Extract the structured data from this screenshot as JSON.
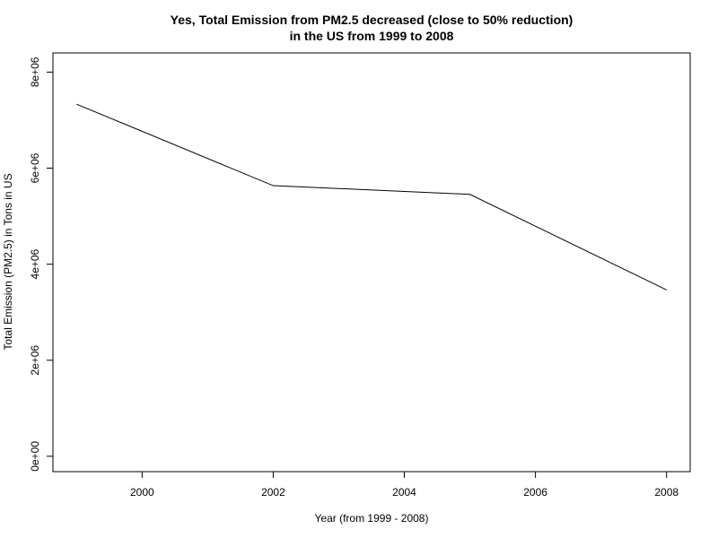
{
  "chart_data": {
    "type": "line",
    "title_lines": [
      "Yes, Total Emission from PM2.5 decreased (close to 50% reduction)",
      "in the US  from 1999 to 2008"
    ],
    "xlabel": "Year (from 1999 - 2008)",
    "ylabel": "Total Emission (PM2.5) in Tons in US",
    "x": [
      1999,
      2002,
      2005,
      2008
    ],
    "series": [
      {
        "values": [
          7332967,
          5635780,
          5454703,
          3464206
        ]
      }
    ],
    "xlim": [
      1998.64,
      2008.36
    ],
    "ylim": [
      -320000,
      8400000
    ],
    "x_ticks": [
      2000,
      2002,
      2004,
      2006,
      2008
    ],
    "x_tick_labels": [
      "2000",
      "2002",
      "2004",
      "2006",
      "2008"
    ],
    "y_ticks": [
      0,
      2000000,
      4000000,
      6000000,
      8000000
    ],
    "y_tick_labels": [
      "0e+00",
      "2e+06",
      "4e+06",
      "6e+06",
      "8e+06"
    ],
    "line_color": "#000000",
    "grid": false,
    "legend": "none"
  }
}
